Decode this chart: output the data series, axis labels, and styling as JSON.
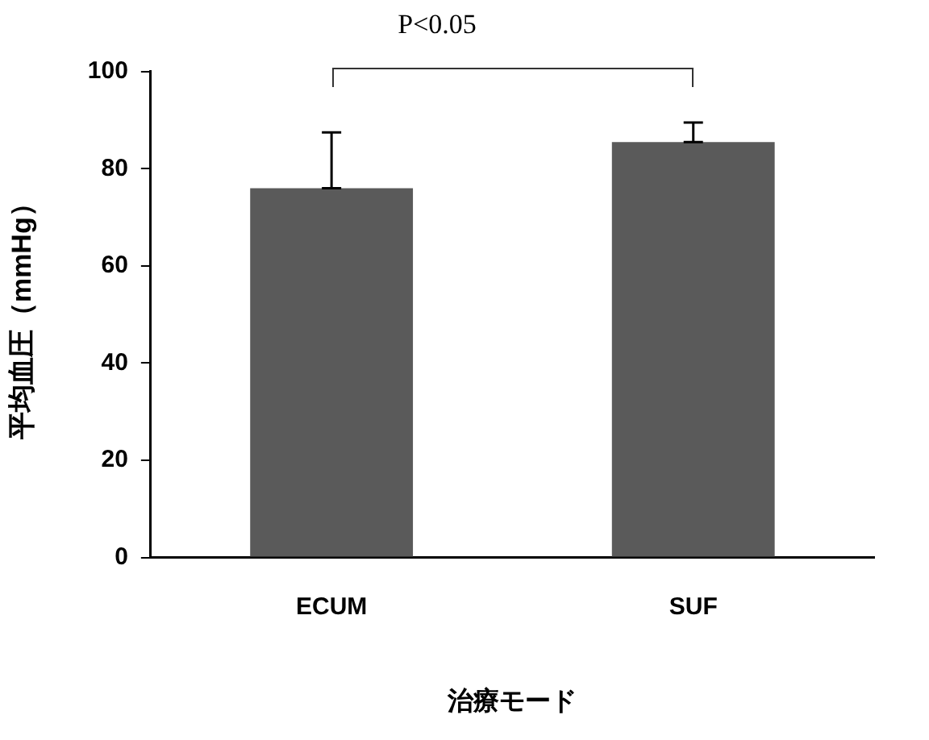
{
  "chart_data": {
    "type": "bar",
    "title": "P<0.05",
    "xlabel": "治療モード",
    "ylabel": "平均血圧（mmHg）",
    "categories": [
      "ECUM",
      "SUF"
    ],
    "values": [
      76,
      85.5
    ],
    "errors": [
      [
        76,
        87.5
      ],
      [
        85.5,
        89.5
      ]
    ],
    "color": "#5a5a5a",
    "ylim": [
      0,
      100
    ],
    "yticks": [
      0,
      20,
      40,
      60,
      80,
      100
    ],
    "grid": false,
    "legend": false
  }
}
